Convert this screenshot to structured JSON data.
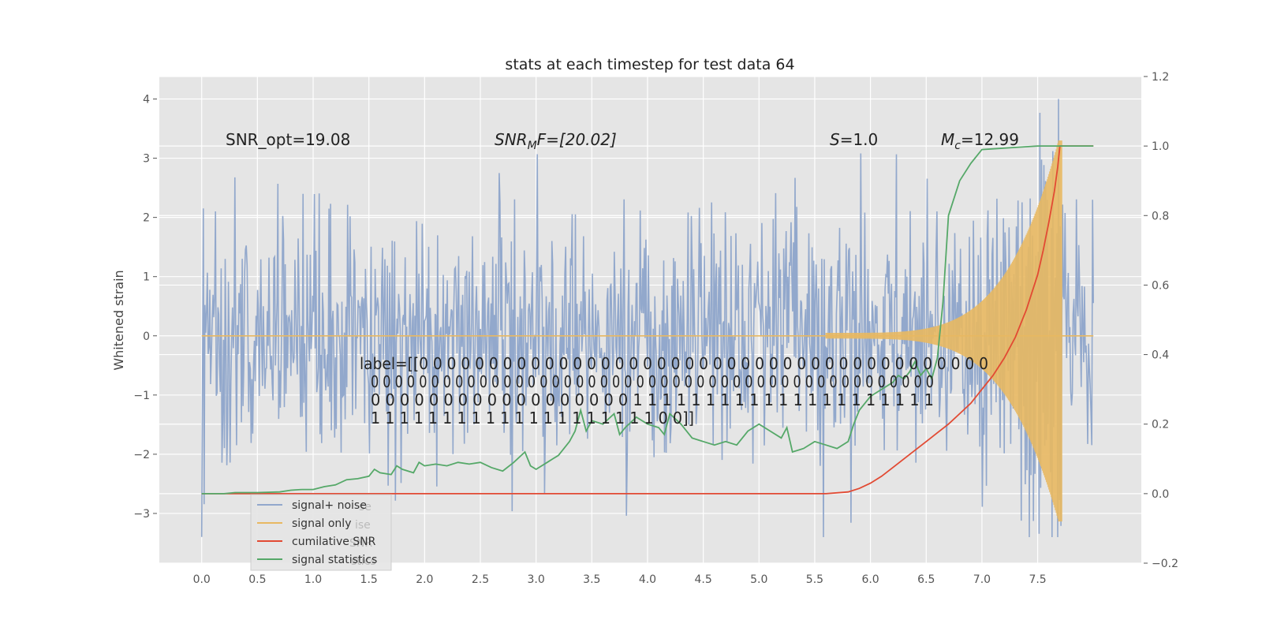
{
  "chart_data": {
    "type": "line",
    "title": "stats at each timestep for test data 64",
    "xlabel": "",
    "ylabel": "Whitened strain",
    "x_ticks": [
      "0.0",
      "0.5",
      "1.0",
      "1.5",
      "2.0",
      "2.5",
      "3.0",
      "3.5",
      "4.0",
      "4.5",
      "5.0",
      "5.5",
      "6.0",
      "6.5",
      "7.0",
      "7.5"
    ],
    "y_ticks": [
      "4",
      "3",
      "2",
      "1",
      "0",
      "−1",
      "−2",
      "−3"
    ],
    "y2_ticks": [
      "1.2",
      "1.0",
      "0.8",
      "0.6",
      "0.4",
      "0.2",
      "0.0",
      "−0.2"
    ],
    "xlim": [
      -0.38,
      8.43
    ],
    "ylim": [
      -3.84,
      4.38
    ],
    "y2lim": [
      -0.2,
      1.2
    ],
    "grid": true,
    "legend_position": "lower-left",
    "annotations": {
      "snr_opt": "SNR_opt=19.08",
      "snr_mf_prefix": "SNR",
      "snr_mf_sub": "M",
      "snr_mf_suffix": "F=[20.02]",
      "s_symbol": "S",
      "s_value": "=1.0",
      "mc_symbol": "M",
      "mc_sub": "c",
      "mc_value": "=12.99"
    },
    "label_lines": [
      "label=[[0 0 0 0 0 0 0 0 0 0 0 0 0 0 0 0 0 0 0 0 0 0 0 0 0 0 0 0 0 0 0 0 0 0 0 0 0 0 0 0 0",
      "0 0 0 0 0 0 0 0 0 0 0 0 0 0 0 0 0 0 0 0 0 0 0 0 0 0 0 0 0 0 0 0 0 0 0 0 0 0 0 0 0 0 0 0 0 0 0",
      "0 0 0 0 0 0 0 0 0 0 0 0 0 0 0 0 0 0 1 1 1 1 1 1 1 1 1 1 1 1 1 1 1 1 1 1 1 1 1",
      "1 1 1 1 1 1 1 1 1 1 1 1 1 1 1 1 1 1 1 1 0 0]]"
    ],
    "legend_ghost": [
      "se",
      "ise",
      "SNR",
      "stics"
    ],
    "series": [
      {
        "name": "signal+ noise",
        "color": "#92a8cc",
        "axis": "left"
      },
      {
        "name": "signal only",
        "color": "#e8b862",
        "axis": "left"
      },
      {
        "name": "cumilative SNR",
        "color": "#e24a33",
        "axis": "right",
        "x": [
          0.0,
          1.0,
          2.0,
          3.0,
          4.0,
          5.0,
          5.6,
          5.8,
          5.9,
          6.0,
          6.1,
          6.2,
          6.3,
          6.4,
          6.5,
          6.6,
          6.7,
          6.8,
          6.9,
          7.0,
          7.1,
          7.2,
          7.3,
          7.4,
          7.5,
          7.55,
          7.6,
          7.65,
          7.68,
          7.7,
          8.0
        ],
        "y": [
          0.0,
          0.0,
          0.0,
          0.0,
          0.0,
          0.0,
          0.0,
          0.005,
          0.015,
          0.03,
          0.05,
          0.075,
          0.1,
          0.125,
          0.15,
          0.175,
          0.2,
          0.23,
          0.26,
          0.3,
          0.34,
          0.39,
          0.45,
          0.53,
          0.63,
          0.7,
          0.78,
          0.87,
          0.94,
          1.0,
          1.0
        ]
      },
      {
        "name": "signal statistics",
        "color": "#55a868",
        "axis": "right",
        "x": [
          0.0,
          0.2,
          0.3,
          0.5,
          0.7,
          0.8,
          0.9,
          1.0,
          1.1,
          1.2,
          1.3,
          1.4,
          1.5,
          1.55,
          1.6,
          1.7,
          1.75,
          1.8,
          1.9,
          1.95,
          2.0,
          2.1,
          2.2,
          2.3,
          2.4,
          2.5,
          2.6,
          2.7,
          2.8,
          2.9,
          2.95,
          3.0,
          3.1,
          3.15,
          3.2,
          3.25,
          3.3,
          3.35,
          3.4,
          3.45,
          3.5,
          3.6,
          3.7,
          3.75,
          3.8,
          3.9,
          4.0,
          4.1,
          4.15,
          4.2,
          4.3,
          4.4,
          4.5,
          4.6,
          4.7,
          4.8,
          4.9,
          5.0,
          5.1,
          5.2,
          5.25,
          5.3,
          5.4,
          5.5,
          5.6,
          5.7,
          5.8,
          5.85,
          5.9,
          6.0,
          6.1,
          6.2,
          6.25,
          6.3,
          6.35,
          6.4,
          6.45,
          6.5,
          6.55,
          6.6,
          6.65,
          6.7,
          6.8,
          6.9,
          7.0,
          7.5,
          8.0
        ],
        "y": [
          0.0,
          0.0,
          0.003,
          0.003,
          0.005,
          0.01,
          0.012,
          0.012,
          0.02,
          0.025,
          0.04,
          0.043,
          0.05,
          0.07,
          0.06,
          0.055,
          0.08,
          0.07,
          0.06,
          0.09,
          0.08,
          0.085,
          0.08,
          0.09,
          0.085,
          0.09,
          0.075,
          0.065,
          0.09,
          0.12,
          0.08,
          0.07,
          0.09,
          0.1,
          0.11,
          0.13,
          0.15,
          0.18,
          0.24,
          0.18,
          0.21,
          0.2,
          0.23,
          0.17,
          0.19,
          0.22,
          0.2,
          0.19,
          0.17,
          0.23,
          0.2,
          0.16,
          0.15,
          0.14,
          0.15,
          0.14,
          0.18,
          0.2,
          0.18,
          0.16,
          0.19,
          0.12,
          0.13,
          0.15,
          0.14,
          0.13,
          0.15,
          0.2,
          0.24,
          0.28,
          0.3,
          0.32,
          0.34,
          0.33,
          0.35,
          0.38,
          0.34,
          0.36,
          0.33,
          0.39,
          0.55,
          0.8,
          0.9,
          0.95,
          0.99,
          1.0,
          1.0
        ]
      }
    ]
  }
}
